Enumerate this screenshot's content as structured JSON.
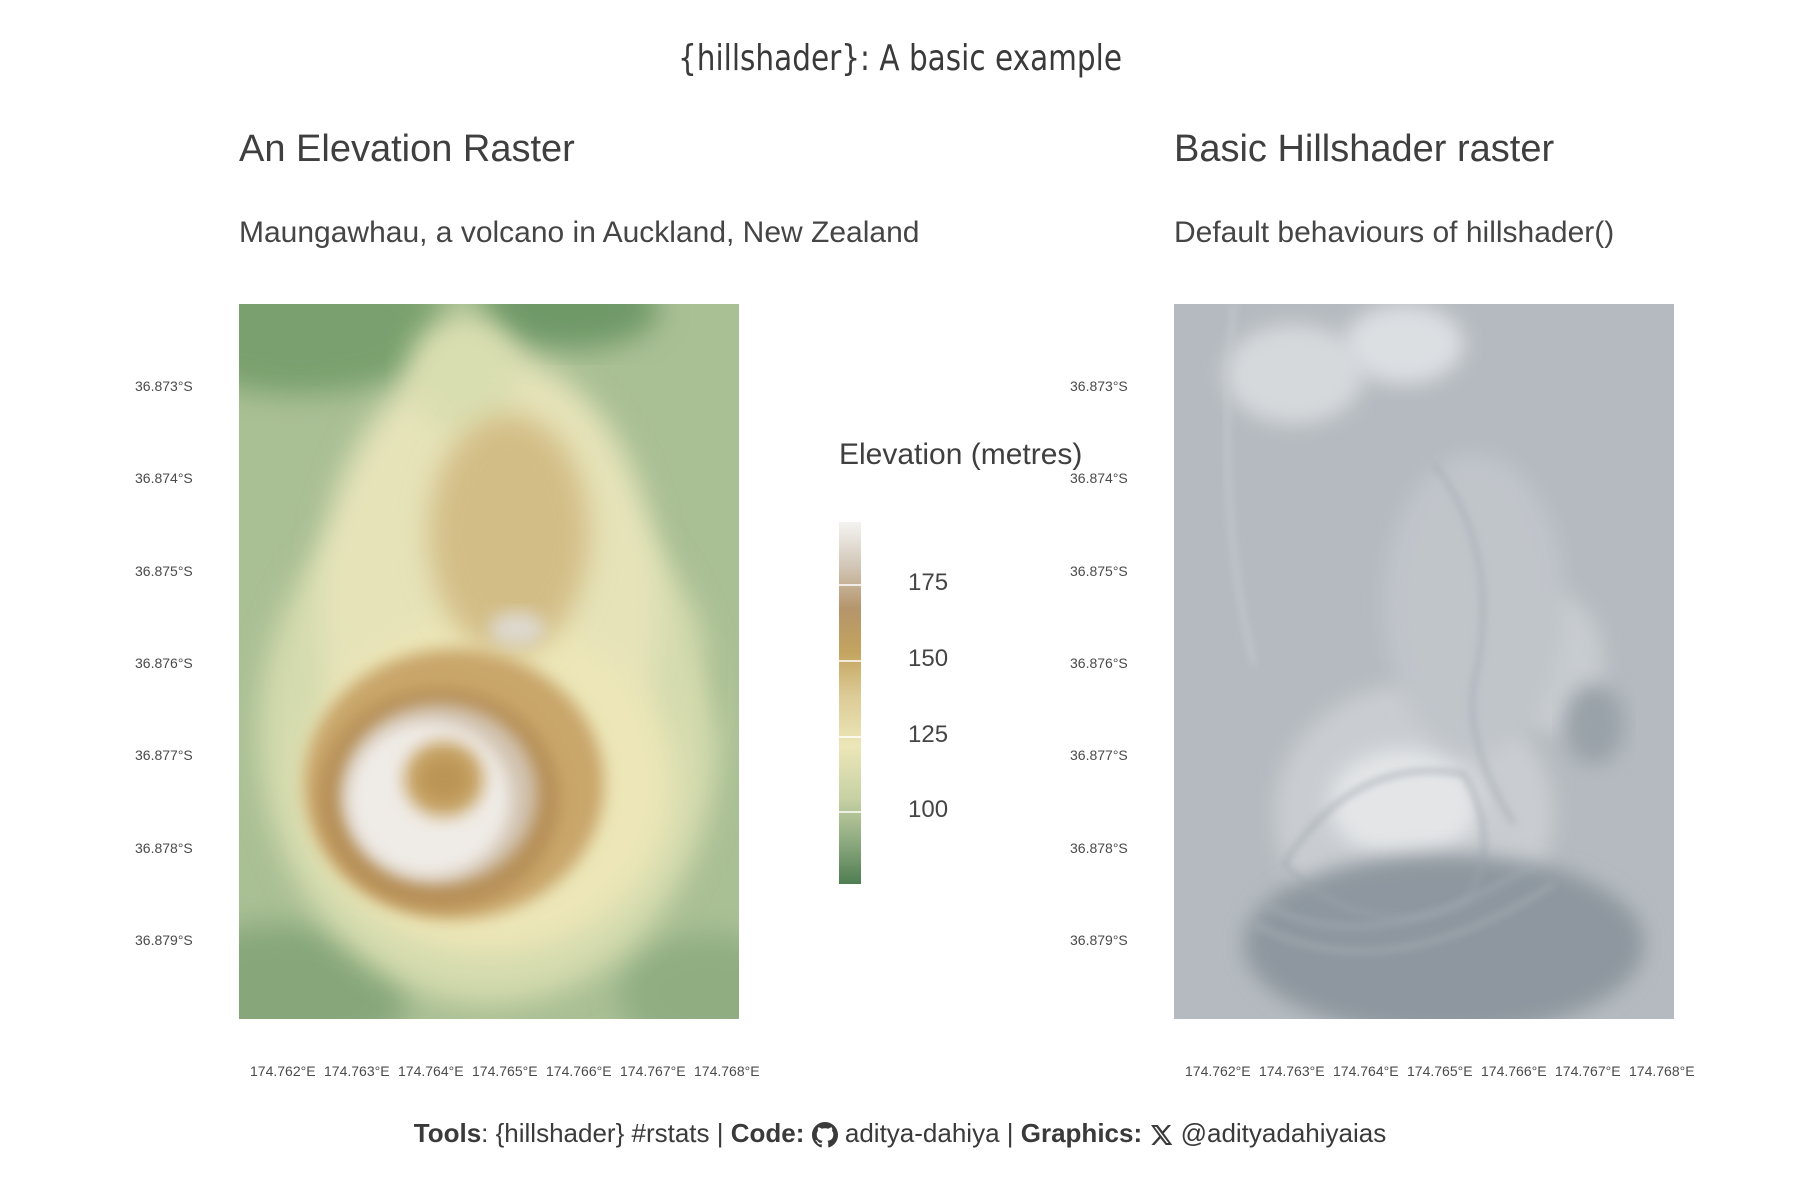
{
  "title": "{hillshader}: A basic example",
  "left_panel": {
    "title": "An Elevation Raster",
    "subtitle": "Maungawhau, a volcano in Auckland, New Zealand"
  },
  "right_panel": {
    "title": "Basic Hillshader raster",
    "subtitle": "Default behaviours of hillshader()"
  },
  "legend": {
    "title": "Elevation (metres)",
    "ticks": [
      "175",
      "150",
      "125",
      "100"
    ]
  },
  "caption": {
    "tools_label": "Tools",
    "tools_text": "{hillshader} #rstats",
    "code_label": "Code:",
    "code_text": "aditya-dahiya",
    "graphics_label": "Graphics:",
    "graphics_text": "@adityadahiyaias",
    "github_icon": "github-icon",
    "x_icon": "x-logo-icon"
  },
  "colors": {
    "elev_low": "#4f7d52",
    "elev_mid": "#ede7b8",
    "elev_high": "#b08848",
    "elev_top": "#f5f4f2",
    "hillshade": "#b6bcc1"
  },
  "chart_data": [
    {
      "type": "heatmap",
      "title": "An Elevation Raster",
      "subtitle": "Maungawhau, a volcano in Auckland, New Zealand",
      "y_ticks": [
        "36.873°S",
        "36.874°S",
        "36.875°S",
        "36.876°S",
        "36.877°S",
        "36.878°S",
        "36.879°S"
      ],
      "x_ticks": [
        "174.762°E",
        "174.763°E",
        "174.764°E",
        "174.765°E",
        "174.766°E",
        "174.767°E",
        "174.768°E"
      ],
      "legend_title": "Elevation (metres)",
      "legend_breaks": [
        175,
        150,
        125,
        100
      ],
      "value_range": [
        94,
        195
      ]
    },
    {
      "type": "heatmap",
      "title": "Basic Hillshader raster",
      "subtitle": "Default behaviours of hillshader()",
      "y_ticks": [
        "36.873°S",
        "36.874°S",
        "36.875°S",
        "36.876°S",
        "36.877°S",
        "36.878°S",
        "36.879°S"
      ],
      "x_ticks": [
        "174.762°E",
        "174.763°E",
        "174.764°E",
        "174.765°E",
        "174.766°E",
        "174.767°E",
        "174.768°E"
      ]
    }
  ]
}
